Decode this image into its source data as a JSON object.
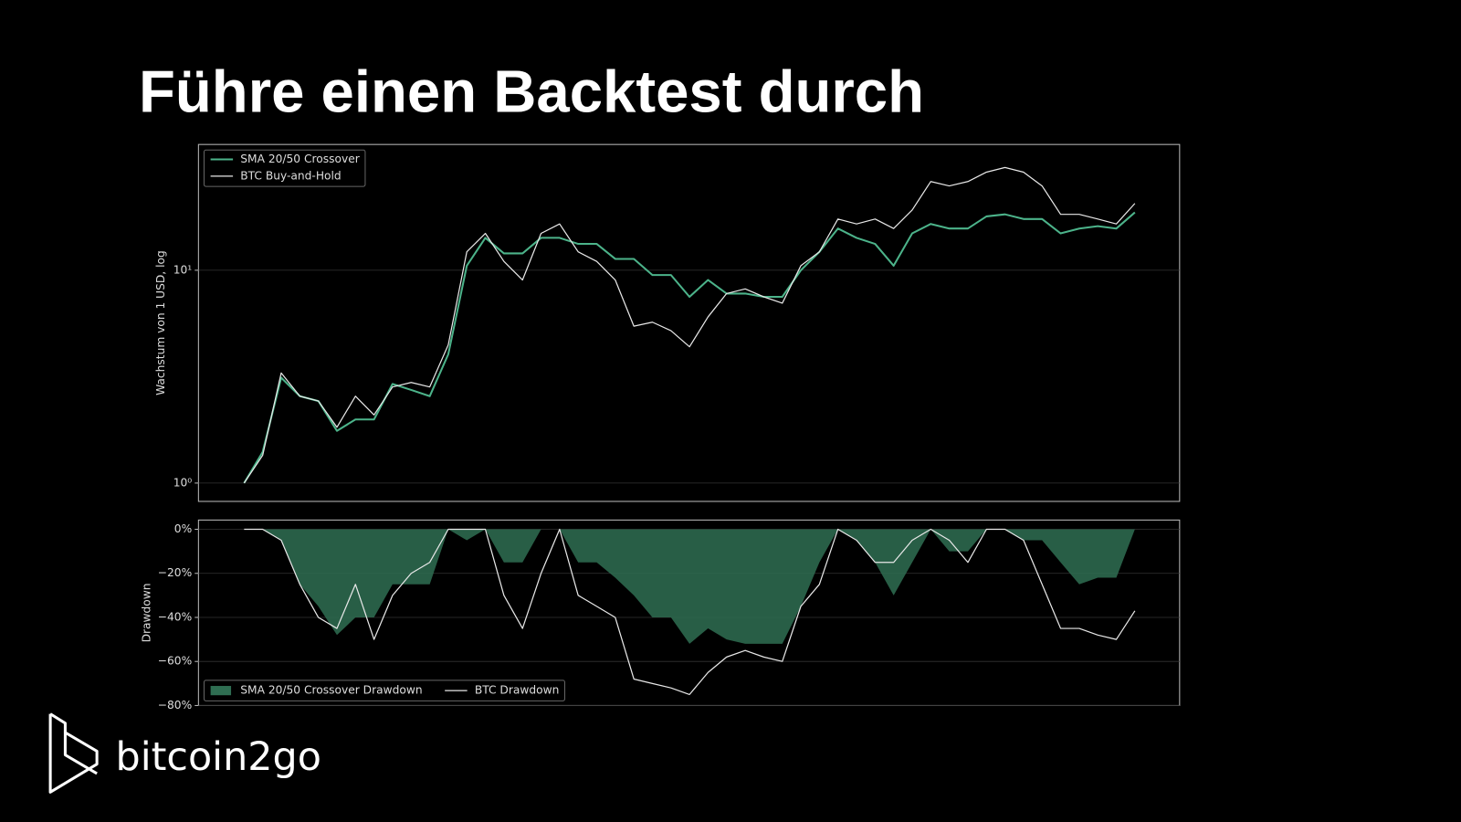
{
  "title": "Führe einen Backtest durch",
  "logo": "bitcoin2go",
  "chart_data": [
    {
      "type": "line",
      "log": true,
      "grid": true,
      "legend": "upper left",
      "ylabel": "Wachstum von 1 USD, log",
      "ylim": [
        0.82,
        39
      ],
      "yticks": [
        {
          "value": 1,
          "label": "10⁰"
        },
        {
          "value": 10,
          "label": "10¹"
        }
      ],
      "series": [
        {
          "name": "SMA 20/50 Crossover",
          "color": "#4cb38a",
          "values": [
            1.0,
            1.4,
            3.13,
            2.56,
            2.43,
            1.76,
            1.99,
            1.99,
            2.92,
            2.74,
            2.56,
            4.03,
            10.5,
            14.2,
            12.0,
            12.0,
            14.2,
            14.2,
            13.3,
            13.3,
            11.3,
            11.3,
            9.5,
            9.5,
            7.5,
            9.0,
            7.77,
            7.77,
            7.5,
            7.5,
            10.0,
            12.2,
            15.7,
            14.2,
            13.3,
            10.5,
            14.9,
            16.5,
            15.7,
            15.7,
            17.9,
            18.3,
            17.4,
            17.4,
            14.9,
            15.7,
            16.1,
            15.7,
            18.7
          ]
        },
        {
          "name": "BTC Buy-and-Hold",
          "color": "#e8e8e8",
          "values": [
            1.0,
            1.35,
            3.29,
            2.56,
            2.43,
            1.83,
            2.56,
            2.09,
            2.83,
            2.97,
            2.83,
            4.46,
            12.2,
            14.9,
            11.0,
            9.0,
            14.9,
            16.5,
            12.2,
            11.0,
            9.0,
            5.46,
            5.7,
            5.2,
            4.37,
            6.04,
            7.77,
            8.17,
            7.5,
            7.0,
            10.5,
            12.2,
            17.4,
            16.5,
            17.4,
            15.7,
            19.2,
            26.1,
            24.9,
            26.1,
            28.9,
            30.4,
            28.9,
            24.9,
            18.3,
            18.3,
            17.4,
            16.5,
            20.6
          ]
        }
      ]
    },
    {
      "type": "area",
      "grid": true,
      "legend": "lower left",
      "ylabel": "Drawdown",
      "ylim": [
        -80,
        4.2
      ],
      "yticks": [
        {
          "value": 0,
          "label": "0%"
        },
        {
          "value": -20,
          "label": "−20%"
        },
        {
          "value": -40,
          "label": "−40%"
        },
        {
          "value": -60,
          "label": "−60%"
        },
        {
          "value": -80,
          "label": "−80%"
        }
      ],
      "series": [
        {
          "name": "SMA 20/50 Crossover Drawdown",
          "color": "#2f6e52",
          "style": "area",
          "values": [
            0,
            0,
            -5,
            -25,
            -35,
            -48,
            -40,
            -40,
            -25,
            -25,
            -25,
            0,
            -5,
            0,
            -15,
            -15,
            0,
            0,
            -15,
            -15,
            -22,
            -30,
            -40,
            -40,
            -52,
            -45,
            -50,
            -52,
            -52,
            -52,
            -35,
            -15,
            0,
            -5,
            -15,
            -30,
            -15,
            0,
            -10,
            -10,
            0,
            0,
            -5,
            -5,
            -15,
            -25,
            -22,
            -22,
            0
          ]
        },
        {
          "name": "BTC Drawdown",
          "color": "#e8e8e8",
          "style": "line",
          "values": [
            0,
            0,
            -5,
            -25,
            -40,
            -45,
            -25,
            -50,
            -30,
            -20,
            -15,
            0,
            0,
            0,
            -30,
            -45,
            -20,
            0,
            -30,
            -35,
            -40,
            -68,
            -70,
            -72,
            -75,
            -65,
            -58,
            -55,
            -58,
            -60,
            -35,
            -25,
            0,
            -5,
            -15,
            -15,
            -5,
            0,
            -5,
            -15,
            0,
            0,
            -5,
            -25,
            -45,
            -45,
            -48,
            -50,
            -37
          ]
        }
      ]
    }
  ]
}
